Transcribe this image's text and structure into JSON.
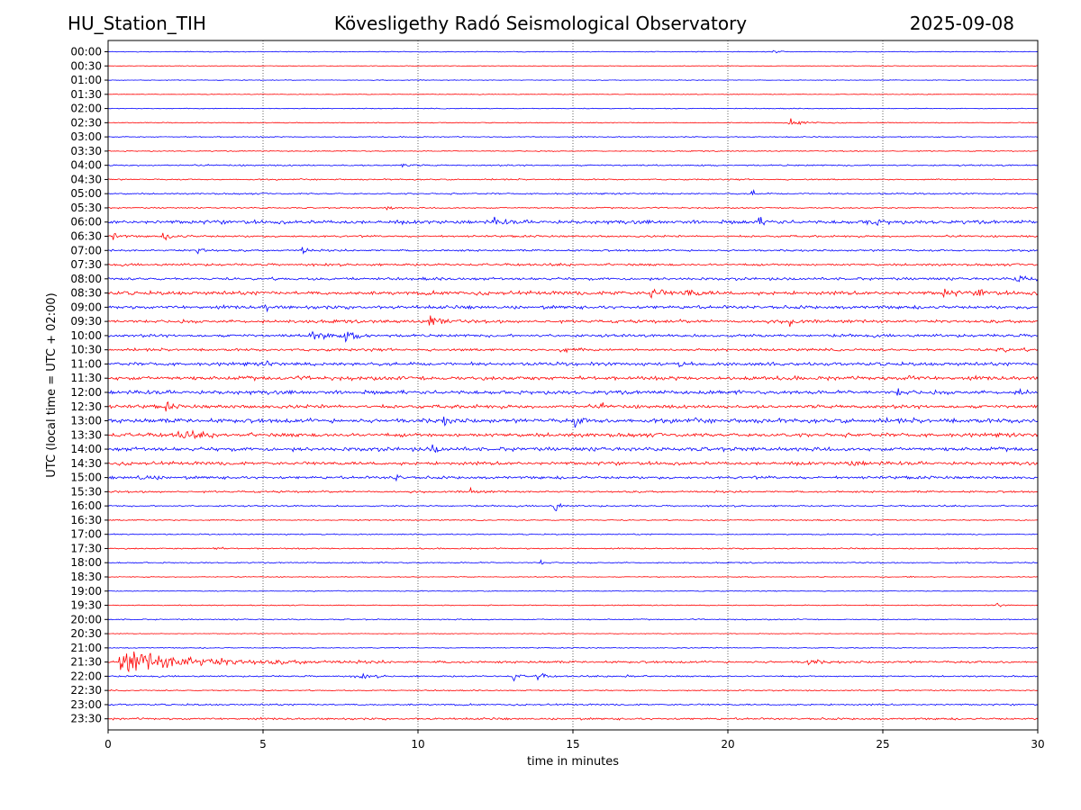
{
  "header": {
    "station": "HU_Station_TIH",
    "observatory": "Kövesligethy Radó Seismological Observatory",
    "date": "2025-09-08"
  },
  "chart_data": {
    "type": "line",
    "title": "Kövesligethy Radó Seismological Observatory",
    "xlabel": "time in minutes",
    "ylabel": "UTC (local time = UTC + 02:00)",
    "xlim": [
      0,
      30
    ],
    "xticks": [
      0,
      5,
      10,
      15,
      20,
      25,
      30
    ],
    "grid": "vertical dotted at x ticks",
    "colors": [
      "#0000ff",
      "#ff0000"
    ],
    "rows": [
      {
        "label": "00:00",
        "noise": 0.5,
        "events": [
          [
            21.5,
            2,
            0.5
          ]
        ]
      },
      {
        "label": "00:30",
        "noise": 0.4,
        "events": []
      },
      {
        "label": "01:00",
        "noise": 0.4,
        "events": []
      },
      {
        "label": "01:30",
        "noise": 0.4,
        "events": []
      },
      {
        "label": "02:00",
        "noise": 0.5,
        "events": []
      },
      {
        "label": "02:30",
        "noise": 0.5,
        "events": [
          [
            22,
            4,
            1
          ]
        ]
      },
      {
        "label": "03:00",
        "noise": 0.6,
        "events": []
      },
      {
        "label": "03:30",
        "noise": 0.6,
        "events": []
      },
      {
        "label": "04:00",
        "noise": 0.9,
        "events": [
          [
            9.5,
            3,
            0.4
          ]
        ]
      },
      {
        "label": "04:30",
        "noise": 0.8,
        "events": []
      },
      {
        "label": "05:00",
        "noise": 0.9,
        "events": [
          [
            20.8,
            4,
            0.3
          ]
        ]
      },
      {
        "label": "05:30",
        "noise": 0.8,
        "events": [
          [
            9.0,
            4,
            0.3
          ]
        ]
      },
      {
        "label": "06:00",
        "noise": 2.2,
        "events": [
          [
            12.5,
            4,
            0.5
          ],
          [
            21,
            4,
            0.6
          ],
          [
            24.5,
            4,
            0.8
          ]
        ]
      },
      {
        "label": "06:30",
        "noise": 1.2,
        "events": [
          [
            0.2,
            5,
            0.4
          ],
          [
            1.8,
            3,
            1
          ]
        ]
      },
      {
        "label": "07:00",
        "noise": 1.2,
        "events": [
          [
            2.9,
            5,
            0.5
          ],
          [
            6.3,
            5,
            0.3
          ]
        ]
      },
      {
        "label": "07:30",
        "noise": 1.4,
        "events": []
      },
      {
        "label": "08:00",
        "noise": 1.6,
        "events": [
          [
            29.3,
            4,
            1.2
          ]
        ]
      },
      {
        "label": "08:30",
        "noise": 2.2,
        "events": [
          [
            16.3,
            5,
            0.3
          ],
          [
            17.5,
            7,
            0.6
          ],
          [
            18.6,
            5,
            0.8
          ],
          [
            27,
            5,
            0.5
          ],
          [
            28.1,
            7,
            0.4
          ]
        ]
      },
      {
        "label": "09:00",
        "noise": 2.0,
        "events": [
          [
            5.1,
            5,
            0.3
          ]
        ]
      },
      {
        "label": "09:30",
        "noise": 1.9,
        "events": [
          [
            10.4,
            10,
            0.6
          ],
          [
            22,
            6,
            0.3
          ]
        ]
      },
      {
        "label": "10:00",
        "noise": 1.7,
        "events": [
          [
            6.5,
            6,
            1.2
          ],
          [
            7.7,
            6,
            0.6
          ]
        ]
      },
      {
        "label": "10:30",
        "noise": 1.5,
        "events": [
          [
            14.6,
            3,
            0.8
          ],
          [
            28.7,
            3,
            1
          ]
        ]
      },
      {
        "label": "11:00",
        "noise": 2.0,
        "events": [
          [
            5.1,
            4,
            0.3
          ],
          [
            18.3,
            3,
            0.4
          ]
        ]
      },
      {
        "label": "11:30",
        "noise": 2.3,
        "events": [
          [
            25.8,
            7,
            0.3
          ]
        ]
      },
      {
        "label": "12:00",
        "noise": 2.3,
        "events": [
          [
            25.5,
            4,
            0.4
          ],
          [
            29.4,
            5,
            0.4
          ]
        ]
      },
      {
        "label": "12:30",
        "noise": 2.1,
        "events": [
          [
            1.9,
            5,
            0.3
          ],
          [
            15.9,
            4,
            0.2
          ]
        ]
      },
      {
        "label": "13:00",
        "noise": 2.6,
        "events": [
          [
            10.8,
            5,
            0.4
          ],
          [
            15.1,
            6,
            0.4
          ]
        ]
      },
      {
        "label": "13:30",
        "noise": 2.3,
        "events": [
          [
            2.3,
            4,
            1.2
          ]
        ]
      },
      {
        "label": "14:00",
        "noise": 2.3,
        "events": [
          [
            10.5,
            5,
            0.4
          ]
        ]
      },
      {
        "label": "14:30",
        "noise": 2.0,
        "events": [
          [
            23.8,
            3,
            1
          ]
        ]
      },
      {
        "label": "15:00",
        "noise": 1.7,
        "events": [
          [
            9.2,
            7,
            0.3
          ],
          [
            1,
            3,
            1
          ]
        ]
      },
      {
        "label": "15:30",
        "noise": 1.2,
        "events": [
          [
            11.7,
            4,
            0.4
          ]
        ]
      },
      {
        "label": "16:00",
        "noise": 0.9,
        "events": [
          [
            14.4,
            9,
            0.3
          ]
        ]
      },
      {
        "label": "16:30",
        "noise": 0.7,
        "events": []
      },
      {
        "label": "17:00",
        "noise": 0.7,
        "events": []
      },
      {
        "label": "17:30",
        "noise": 0.8,
        "events": [
          [
            3.4,
            3,
            0.4
          ]
        ]
      },
      {
        "label": "18:00",
        "noise": 0.8,
        "events": [
          [
            14,
            3,
            0.3
          ]
        ]
      },
      {
        "label": "18:30",
        "noise": 0.5,
        "events": [
          [
            25.9,
            3,
            0.2
          ]
        ]
      },
      {
        "label": "19:00",
        "noise": 0.5,
        "events": []
      },
      {
        "label": "19:30",
        "noise": 0.6,
        "events": [
          [
            28.7,
            3,
            0.2
          ]
        ]
      },
      {
        "label": "20:00",
        "noise": 0.7,
        "events": []
      },
      {
        "label": "20:30",
        "noise": 0.4,
        "events": []
      },
      {
        "label": "21:00",
        "noise": 0.6,
        "events": []
      },
      {
        "label": "21:30",
        "noise": 1.4,
        "events": [
          [
            0.4,
            15,
            5
          ],
          [
            22.6,
            5,
            0.5
          ]
        ]
      },
      {
        "label": "22:00",
        "noise": 0.9,
        "events": [
          [
            8,
            3,
            1
          ],
          [
            13.1,
            6,
            0.3
          ],
          [
            13.8,
            8,
            0.4
          ],
          [
            16.7,
            5,
            0.3
          ]
        ]
      },
      {
        "label": "22:30",
        "noise": 0.7,
        "events": []
      },
      {
        "label": "23:00",
        "noise": 1.0,
        "events": []
      },
      {
        "label": "23:30",
        "noise": 1.2,
        "events": []
      }
    ]
  }
}
